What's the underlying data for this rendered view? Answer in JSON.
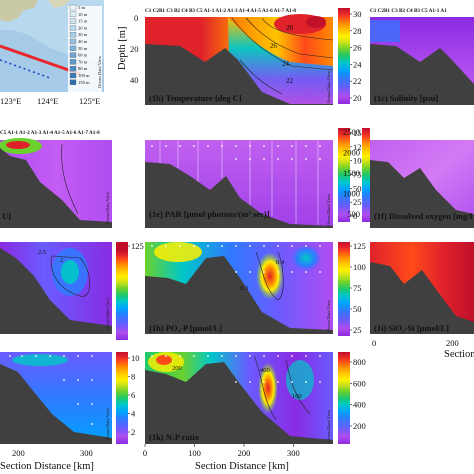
{
  "colors": {
    "land": "#404040",
    "section_line": "#e8262b",
    "map_sea": "#b8d8ee"
  },
  "colormap": [
    "#8a2be2",
    "#b04df0",
    "#6a5cff",
    "#2f7bff",
    "#00a3ff",
    "#00c8c8",
    "#1ec96a",
    "#6bd12d",
    "#c9e21a",
    "#fff000",
    "#ffc400",
    "#ff8a00",
    "#ff4a1a",
    "#e0222b",
    "#c0102a"
  ],
  "map": {
    "lon_labels": [
      "123°E",
      "124°E",
      "125°E"
    ],
    "depth_legend": [
      "5 m",
      "10 m",
      "15 m",
      "20 m",
      "30 m",
      "40 m",
      "50 m",
      "60 m",
      "70 m",
      "80 m",
      "100 m",
      "150 m"
    ],
    "watermark": "Ocean Data View"
  },
  "labels": {
    "depth_axis": "Depth [m]",
    "section_distance": "Section Distance [km]",
    "watermark": "Ocean Data View"
  },
  "station_header_full": "C1  C2B1  C3 B2  C4  B3  C5  A1-1 A1-2 A1-3 A1-4 A1-5 A1-6 A1-7 A1-8",
  "station_header_right": "A1-1 A1-2 A1-3 A1-4 A1-5 A1-6 A1-7 A1-8",
  "chart_data": [
    {
      "id": "1b",
      "type": "heatmap",
      "title": "(1b) Temperature [deg C]",
      "colorbar_ticks": [
        "30",
        "28",
        "26",
        "24",
        "22",
        "20"
      ],
      "colorbar_range": [
        19,
        30
      ],
      "contour_labels": [
        "22",
        "24",
        "26",
        "28"
      ],
      "y_ticks": [
        "0",
        "20",
        "40"
      ],
      "ylim": [
        0,
        55
      ],
      "xlim": [
        0,
        380
      ]
    },
    {
      "id": "1c",
      "type": "heatmap",
      "title": "(1c) Salinity [psu]",
      "station_header": "C1  C2B1  C3 B2  C4  B3  C5  A1-1 A1",
      "y_ticks": [],
      "xlim": [
        0,
        380
      ]
    },
    {
      "id": "1d",
      "type": "heatmap",
      "title": "U]",
      "station_header": "C5  A1-1 A1-2 A1-3 A1-4 A1-5 A1-6 A1-7 A1-8",
      "colorbar_ticks": [],
      "xlim": [
        0,
        380
      ]
    },
    {
      "id": "1e",
      "type": "heatmap",
      "title": "(1e) PAR [µmol photons/(m² sec)]",
      "colorbar_ticks": [
        "150",
        "125",
        "100",
        "75",
        "50",
        "25",
        "0"
      ],
      "colorbar_range": [
        0,
        150
      ],
      "xlim": [
        0,
        380
      ]
    },
    {
      "id": "1f",
      "type": "heatmap",
      "title": "(1f) Dissolved oxygen [mg/L]",
      "colorbar_ticks": [
        "2500",
        "2000",
        "1500",
        "1000",
        "500"
      ],
      "colorbar_range": [
        0,
        2500
      ],
      "xlim": [
        0,
        380
      ]
    },
    {
      "id": "1g",
      "type": "heatmap",
      "title": "",
      "colorbar_ticks": [
        "125"
      ],
      "contour_labels": [
        "2.5",
        "2",
        "5",
        "7"
      ],
      "xlim": [
        0,
        380
      ]
    },
    {
      "id": "1h",
      "type": "heatmap",
      "title": "(1h) PO₄-P [µmol/L]",
      "colorbar_ticks": [
        "125",
        "100",
        "75",
        "50",
        "25"
      ],
      "colorbar_range": [
        0,
        125
      ],
      "contour_labels": [
        "0.4",
        "0.3",
        "0.2"
      ],
      "xlim": [
        0,
        380
      ]
    },
    {
      "id": "1i",
      "type": "heatmap",
      "title": "(1i) SiO₃-Si [µmol/L]",
      "colorbar_ticks": [
        "0.6",
        "0.5",
        "0.4",
        "0.3",
        "0.2",
        "0.1",
        "0"
      ],
      "colorbar_range": [
        0,
        0.6
      ],
      "x_ticks": [
        "0",
        "200"
      ],
      "xlabel": "Section",
      "xlim": [
        0,
        380
      ]
    },
    {
      "id": "1j",
      "type": "heatmap",
      "title": "",
      "colorbar_ticks": [
        "10",
        "8",
        "6",
        "4",
        "2"
      ],
      "colorbar_range": [
        0,
        11
      ],
      "x_ticks": [
        "200",
        "300"
      ],
      "xlabel": "Section Distance [km]",
      "contour_labels": [
        "0.5"
      ],
      "xlim": [
        0,
        380
      ]
    },
    {
      "id": "1k",
      "type": "heatmap",
      "title": "(1k) N:P ratio",
      "colorbar_ticks": [
        "800",
        "600",
        "400",
        "200"
      ],
      "colorbar_range": [
        0,
        900
      ],
      "x_ticks": [
        "0",
        "100",
        "200",
        "300"
      ],
      "xlabel": "Section Distance [km]",
      "contour_labels": [
        "200",
        "400",
        "100"
      ],
      "xlim": [
        0,
        380
      ]
    }
  ]
}
